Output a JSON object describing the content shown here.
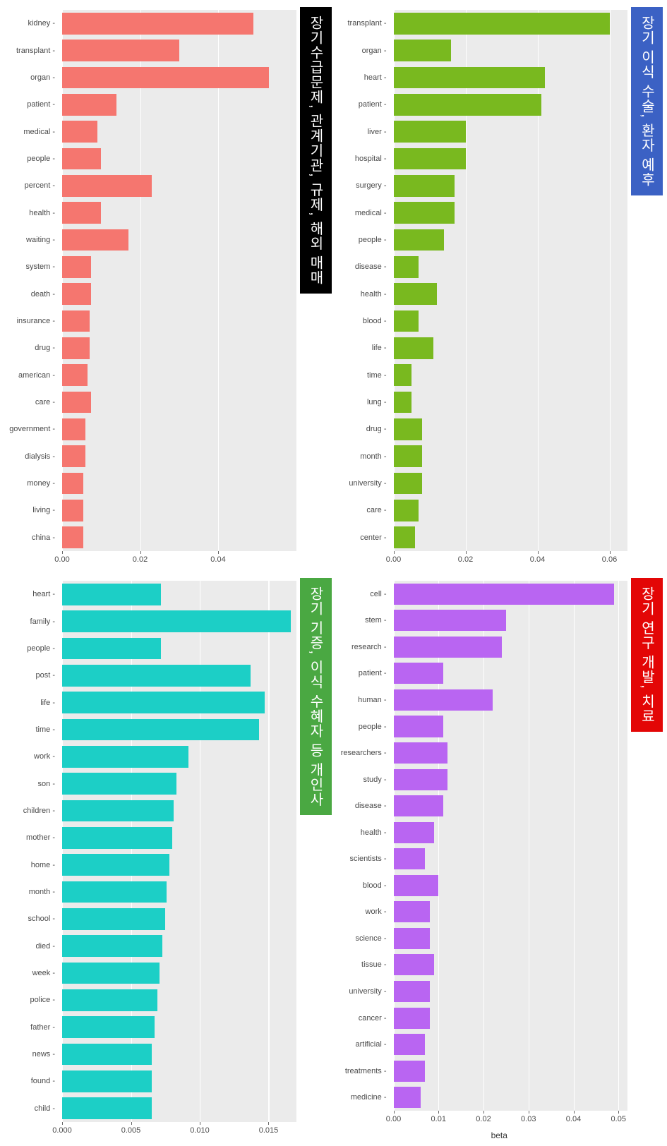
{
  "axis_label": "beta",
  "panels": [
    {
      "id": "p1",
      "title": "장기수급문제, 관계기관, 규제, 해외 매매",
      "banner_bg": "#000000",
      "bar_color": "#f5766f",
      "background": "#ebebeb",
      "grid_color": "#ffffff",
      "xlim": [
        0,
        0.06
      ],
      "xticks": [
        0.0,
        0.02,
        0.04
      ],
      "xtick_labels": [
        "0.00",
        "0.02",
        "0.04"
      ],
      "categories": [
        "kidney",
        "transplant",
        "organ",
        "patient",
        "medical",
        "people",
        "percent",
        "health",
        "waiting",
        "system",
        "death",
        "insurance",
        "drug",
        "american",
        "care",
        "government",
        "dialysis",
        "money",
        "living",
        "china"
      ],
      "values": [
        0.049,
        0.03,
        0.053,
        0.014,
        0.009,
        0.01,
        0.023,
        0.01,
        0.017,
        0.0075,
        0.0075,
        0.007,
        0.007,
        0.0065,
        0.0075,
        0.006,
        0.006,
        0.0055,
        0.0055,
        0.0055
      ]
    },
    {
      "id": "p2",
      "title": "장기 이식 수술, 환자 예후",
      "banner_bg": "#3b61c4",
      "bar_color": "#79b91f",
      "background": "#ebebeb",
      "grid_color": "#ffffff",
      "xlim": [
        0,
        0.065
      ],
      "xticks": [
        0.0,
        0.02,
        0.04,
        0.06
      ],
      "xtick_labels": [
        "0.00",
        "0.02",
        "0.04",
        "0.06"
      ],
      "categories": [
        "transplant",
        "organ",
        "heart",
        "patient",
        "liver",
        "hospital",
        "surgery",
        "medical",
        "people",
        "disease",
        "health",
        "blood",
        "life",
        "time",
        "lung",
        "drug",
        "month",
        "university",
        "care",
        "center"
      ],
      "values": [
        0.06,
        0.016,
        0.042,
        0.041,
        0.02,
        0.02,
        0.017,
        0.017,
        0.014,
        0.007,
        0.012,
        0.007,
        0.011,
        0.005,
        0.005,
        0.008,
        0.008,
        0.008,
        0.007,
        0.006
      ]
    },
    {
      "id": "p3",
      "title": "장기 기증, 이식 수혜자 등 개인사",
      "banner_bg": "#4aa842",
      "bar_color": "#1ccfc6",
      "background": "#ebebeb",
      "grid_color": "#ffffff",
      "xlim": [
        0,
        0.017
      ],
      "xticks": [
        0.0,
        0.005,
        0.01,
        0.015
      ],
      "xtick_labels": [
        "0.000",
        "0.005",
        "0.010",
        "0.015"
      ],
      "categories": [
        "heart",
        "family",
        "people",
        "post",
        "life",
        "time",
        "work",
        "son",
        "children",
        "mother",
        "home",
        "month",
        "school",
        "died",
        "week",
        "police",
        "father",
        "news",
        "found",
        "child"
      ],
      "values": [
        0.0072,
        0.0166,
        0.0072,
        0.0137,
        0.0147,
        0.0143,
        0.0092,
        0.0083,
        0.0081,
        0.008,
        0.0078,
        0.0076,
        0.0075,
        0.0073,
        0.0071,
        0.0069,
        0.0067,
        0.0065,
        0.0065,
        0.0065
      ]
    },
    {
      "id": "p4",
      "title": "장기 연구 개발, 치료",
      "banner_bg": "#e30606",
      "bar_color": "#b965f2",
      "background": "#ebebeb",
      "grid_color": "#ffffff",
      "xlim": [
        0,
        0.052
      ],
      "xticks": [
        0.0,
        0.01,
        0.02,
        0.03,
        0.04,
        0.05
      ],
      "xtick_labels": [
        "0.00",
        "0.01",
        "0.02",
        "0.03",
        "0.04",
        "0.05"
      ],
      "categories": [
        "cell",
        "stem",
        "research",
        "patient",
        "human",
        "people",
        "researchers",
        "study",
        "disease",
        "health",
        "scientists",
        "blood",
        "work",
        "science",
        "tissue",
        "university",
        "cancer",
        "artificial",
        "treatments",
        "medicine"
      ],
      "values": [
        0.049,
        0.025,
        0.024,
        0.011,
        0.022,
        0.011,
        0.012,
        0.012,
        0.011,
        0.009,
        0.007,
        0.01,
        0.008,
        0.008,
        0.009,
        0.008,
        0.008,
        0.007,
        0.007,
        0.006
      ]
    }
  ]
}
